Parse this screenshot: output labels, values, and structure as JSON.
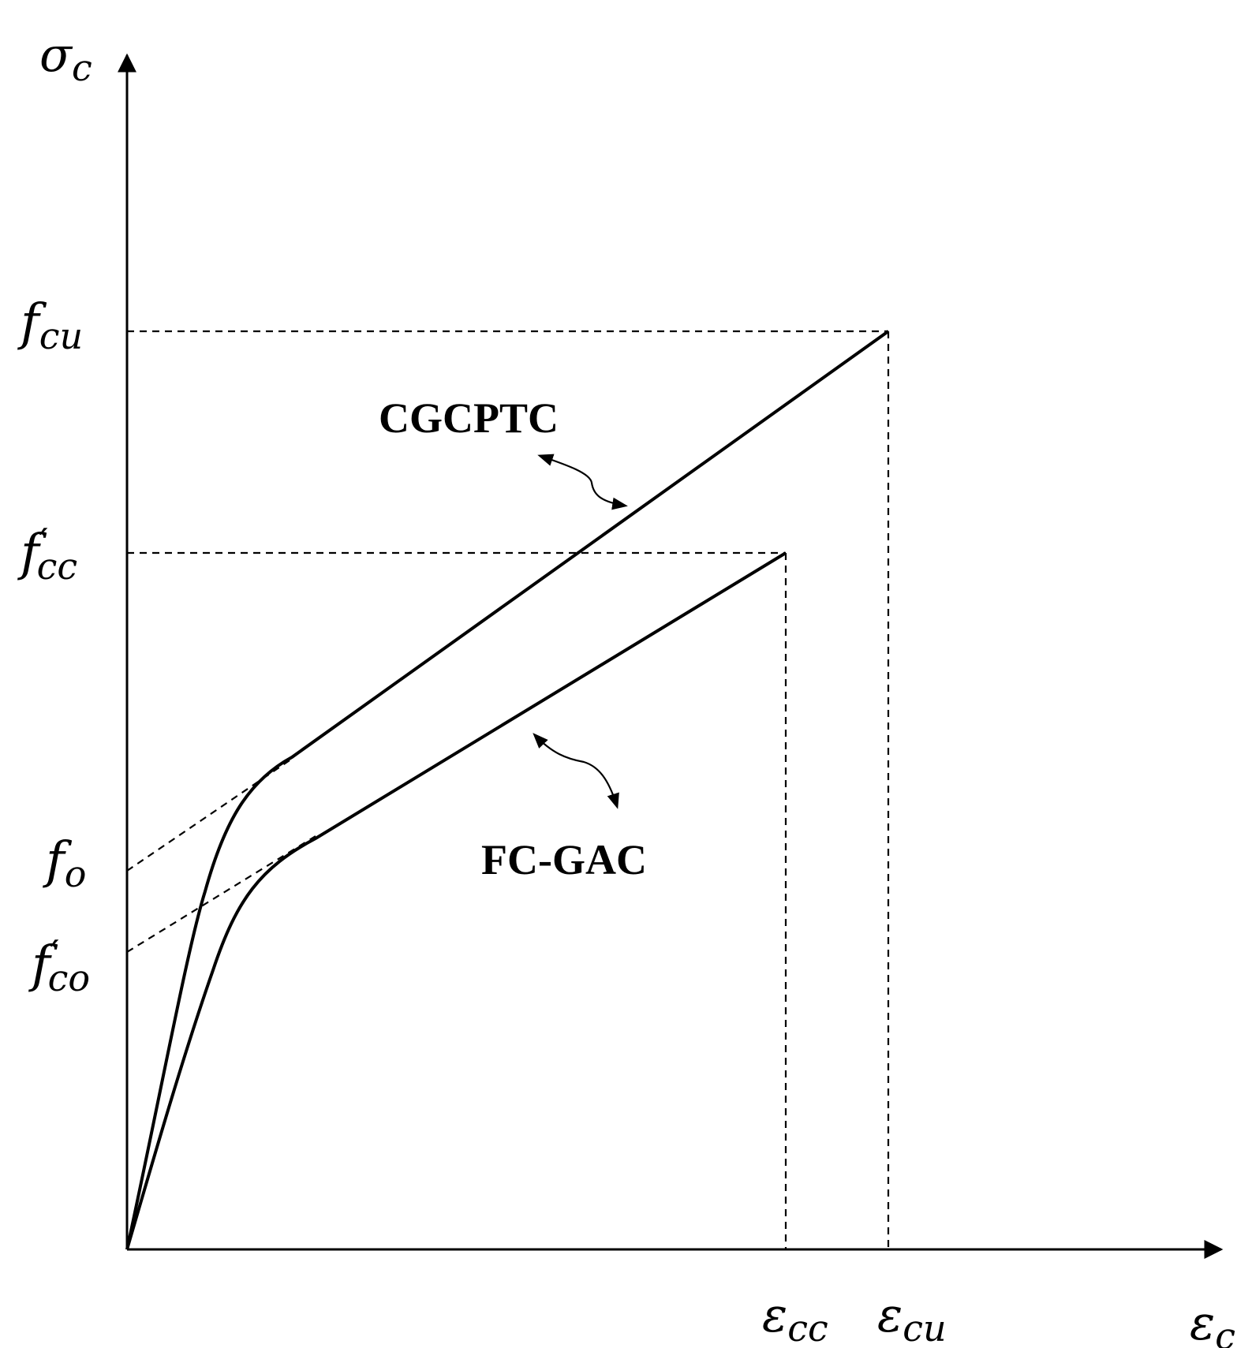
{
  "axes": {
    "y": {
      "symbol": "σ",
      "sub": "c"
    },
    "x": {
      "symbol": "ε",
      "sub": "c"
    }
  },
  "stress_labels": [
    {
      "id": "fcu",
      "main": "f",
      "prime": "",
      "sub": "cu"
    },
    {
      "id": "fcc",
      "main": "f",
      "prime": "′",
      "sub": "cc"
    },
    {
      "id": "fo",
      "main": "f",
      "prime": "",
      "sub": "o"
    },
    {
      "id": "fco",
      "main": "f",
      "prime": "′",
      "sub": "co"
    }
  ],
  "strain_labels": [
    {
      "id": "ecc",
      "main": "ε",
      "sub": "cc"
    },
    {
      "id": "ecu",
      "main": "ε",
      "sub": "cu"
    }
  ],
  "curves": [
    {
      "id": "cgcptc",
      "label": "CGCPTC"
    },
    {
      "id": "fcgac",
      "label": "FC-GAC"
    }
  ]
}
